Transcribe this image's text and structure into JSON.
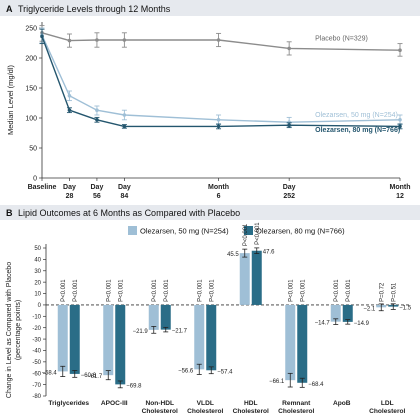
{
  "chart_data": [
    {
      "type": "line",
      "panel_label": "A",
      "title": "Triglyceride Levels through 12 Months",
      "ylabel": "Median Level (mg/dl)",
      "ylim": [
        0,
        250
      ],
      "yticks": [
        0,
        50,
        100,
        150,
        200,
        250
      ],
      "x_positions": [
        0,
        28,
        56,
        84,
        180,
        252,
        365
      ],
      "x_labels": [
        [
          "Baseline"
        ],
        [
          "Day",
          "28"
        ],
        [
          "Day",
          "56"
        ],
        [
          "Day",
          "84"
        ],
        [
          "Month",
          "6"
        ],
        [
          "Day",
          "252"
        ],
        [
          "Month",
          "12"
        ]
      ],
      "grid": false,
      "series": [
        {
          "name": "Placebo (N=329)",
          "color": "#8c8c8c",
          "values": [
            242,
            229,
            230,
            230,
            230,
            216,
            213
          ],
          "err_low": [
            228,
            218,
            218,
            218,
            219,
            205,
            203
          ],
          "err_high": [
            254,
            240,
            242,
            242,
            241,
            227,
            224
          ]
        },
        {
          "name": "Olezarsen, 50 mg (N=254)",
          "color": "#9fbfd6",
          "values": [
            238,
            137,
            113,
            105,
            97,
            93,
            97
          ],
          "err_low": [
            225,
            129,
            105,
            97,
            89,
            86,
            89
          ],
          "err_high": [
            250,
            145,
            120,
            113,
            105,
            101,
            105
          ]
        },
        {
          "name": "Olezarsen, 80 mg (N=766)",
          "color": "#24566e",
          "values": [
            236,
            113,
            97,
            86,
            86,
            88,
            86
          ],
          "err_low": [
            224,
            109,
            93,
            83,
            82,
            84,
            82
          ],
          "err_high": [
            248,
            117,
            101,
            89,
            90,
            92,
            90
          ]
        }
      ]
    },
    {
      "type": "bar",
      "panel_label": "B",
      "title": "Lipid Outcomes at 6 Months as Compared with Placebo",
      "ylabel_lines": [
        "Change in Level as Compared with Placebo",
        "(percentage points)"
      ],
      "ylim": [
        -80,
        50
      ],
      "yticks": [
        -80,
        -70,
        -60,
        -50,
        -40,
        -30,
        -20,
        -10,
        0,
        10,
        20,
        30,
        40,
        50
      ],
      "legend_position": "top",
      "categories": [
        [
          "Triglycerides"
        ],
        [
          "APOC-III"
        ],
        [
          "Non-HDL",
          "Cholesterol"
        ],
        [
          "VLDL",
          "Cholesterol"
        ],
        [
          "HDL",
          "Cholesterol"
        ],
        [
          "Remnant",
          "Cholesterol"
        ],
        [
          "ApoB"
        ],
        [
          "LDL",
          "Cholesterol"
        ]
      ],
      "series": [
        {
          "name": "Olezarsen, 50 mg (N=254)",
          "color": "#9fbfd6",
          "values": [
            -58.4,
            -61.7,
            -21.9,
            -56.6,
            45.5,
            -66.1,
            -14.7,
            -2.1
          ],
          "value_labels": [
            "−58.4",
            "−61.7",
            "−21.9",
            "−56.6",
            "45.5",
            "−66.1",
            "−14.7",
            "−2.1"
          ],
          "err": [
            4.5,
            4.0,
            3.0,
            4.5,
            3.5,
            6.0,
            2.5,
            3.0
          ],
          "p_values": [
            "P<0.001",
            "P<0.001",
            "P<0.001",
            "P<0.001",
            "P<0.001",
            "P<0.001",
            "P<0.001",
            "P=0.72"
          ]
        },
        {
          "name": "Olezarsen, 80 mg (N=766)",
          "color": "#2a6d87",
          "values": [
            -60.6,
            -69.8,
            -21.7,
            -57.4,
            47.6,
            -68.4,
            -14.9,
            -1.5
          ],
          "value_labels": [
            "−60.6",
            "−69.8",
            "−21.7",
            "−57.4",
            "47.6",
            "−68.4",
            "−14.9",
            "−1.5"
          ],
          "err": [
            3.0,
            3.0,
            2.0,
            3.0,
            2.5,
            4.0,
            2.0,
            2.5
          ],
          "p_values": [
            "P<0.001",
            "P<0.001",
            "P<0.001",
            "P<0.001",
            "P<0.001",
            "P<0.001",
            "P<0.001",
            "P=0.51"
          ]
        }
      ]
    }
  ]
}
